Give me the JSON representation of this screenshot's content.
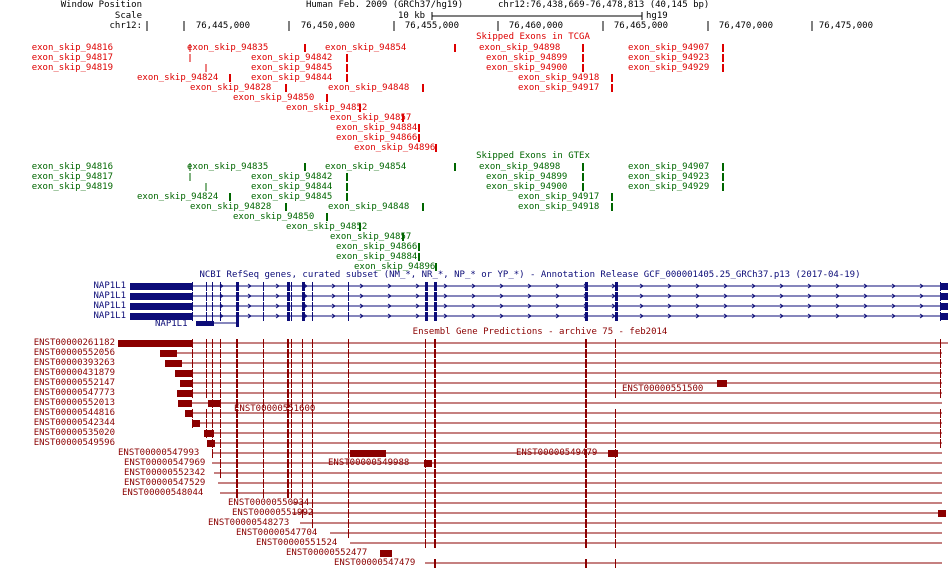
{
  "header": {
    "window_position_label": "Window Position",
    "assembly": "Human Feb. 2009 (GRCh37/hg19)",
    "position": "chr12:76,438,669-76,478,813 (40,145 bp)",
    "scale_label": "Scale",
    "scale_value": "10 kb",
    "scale_assembly": "hg19",
    "chrom_label": "chr12:",
    "ruler_ticks": [
      "76,445,000",
      "76,450,000",
      "76,455,000",
      "76,460,000",
      "76,465,000",
      "76,470,000",
      "76,475,000"
    ]
  },
  "tracks": {
    "tcga": {
      "title": "Skipped Exons in TCGA",
      "color": "#dd0000",
      "left_labels": [
        "exon_skip_94816",
        "exon_skip_94817",
        "exon_skip_94819"
      ],
      "items": [
        {
          "label": "exon_skip_94835",
          "row": 0,
          "align": "right",
          "side": "left"
        },
        {
          "label": "exon_skip_94854",
          "row": 0,
          "align": "right",
          "side": "left"
        },
        {
          "label": "exon_skip_94898",
          "row": 0,
          "align": "right",
          "side": "left"
        },
        {
          "label": "exon_skip_94907",
          "row": 0,
          "align": "right",
          "side": "left"
        },
        {
          "label": "exon_skip_94842",
          "row": 1,
          "align": "right",
          "side": "left"
        },
        {
          "label": "exon_skip_94899",
          "row": 1,
          "align": "right",
          "side": "left"
        },
        {
          "label": "exon_skip_94923",
          "row": 1,
          "align": "right",
          "side": "left"
        },
        {
          "label": "exon_skip_94845",
          "row": 2,
          "align": "right",
          "side": "left"
        },
        {
          "label": "exon_skip_94900",
          "row": 2,
          "align": "right",
          "side": "left"
        },
        {
          "label": "exon_skip_94929",
          "row": 2,
          "align": "right",
          "side": "left"
        },
        {
          "label": "exon_skip_94824",
          "row": 3,
          "align": "right",
          "side": "left"
        },
        {
          "label": "exon_skip_94844",
          "row": 3,
          "align": "right",
          "side": "left"
        },
        {
          "label": "exon_skip_94918",
          "row": 3,
          "align": "right",
          "side": "left"
        },
        {
          "label": "exon_skip_94828",
          "row": 4,
          "align": "right",
          "side": "left"
        },
        {
          "label": "exon_skip_94848",
          "row": 4,
          "align": "right",
          "side": "left"
        },
        {
          "label": "exon_skip_94917",
          "row": 4,
          "align": "right",
          "side": "left"
        },
        {
          "label": "exon_skip_94850",
          "row": 5,
          "align": "right",
          "side": "left"
        },
        {
          "label": "exon_skip_94852",
          "row": 6,
          "align": "right",
          "side": "left"
        },
        {
          "label": "exon_skip_94857",
          "row": 7,
          "align": "right",
          "side": "left"
        },
        {
          "label": "exon_skip_94884",
          "row": 8,
          "align": "right",
          "side": "left"
        },
        {
          "label": "exon_skip_94866",
          "row": 9,
          "align": "right",
          "side": "left"
        },
        {
          "label": "exon_skip_94896",
          "row": 10,
          "align": "right",
          "side": "left"
        }
      ]
    },
    "gtex": {
      "title": "Skipped Exons in GTEx",
      "color": "#006600",
      "left_labels": [
        "exon_skip_94816",
        "exon_skip_94817",
        "exon_skip_94819"
      ],
      "items": [
        {
          "label": "exon_skip_94835",
          "row": 0
        },
        {
          "label": "exon_skip_94854",
          "row": 0
        },
        {
          "label": "exon_skip_94898",
          "row": 0
        },
        {
          "label": "exon_skip_94907",
          "row": 0
        },
        {
          "label": "exon_skip_94842",
          "row": 1
        },
        {
          "label": "exon_skip_94899",
          "row": 1
        },
        {
          "label": "exon_skip_94923",
          "row": 1
        },
        {
          "label": "exon_skip_94844",
          "row": 2
        },
        {
          "label": "exon_skip_94900",
          "row": 2
        },
        {
          "label": "exon_skip_94929",
          "row": 2
        },
        {
          "label": "exon_skip_94824",
          "row": 3
        },
        {
          "label": "exon_skip_94845",
          "row": 3
        },
        {
          "label": "exon_skip_94917",
          "row": 3
        },
        {
          "label": "exon_skip_94828",
          "row": 4
        },
        {
          "label": "exon_skip_94848",
          "row": 4
        },
        {
          "label": "exon_skip_94918",
          "row": 4
        },
        {
          "label": "exon_skip_94850",
          "row": 5
        },
        {
          "label": "exon_skip_94852",
          "row": 6
        },
        {
          "label": "exon_skip_94857",
          "row": 7
        },
        {
          "label": "exon_skip_94866",
          "row": 8
        },
        {
          "label": "exon_skip_94884",
          "row": 9
        },
        {
          "label": "exon_skip_94896",
          "row": 10
        }
      ]
    },
    "refseq": {
      "title": "NCBI RefSeq genes, curated subset (NM_*, NR_*, NP_* or YP_*) - Annotation Release GCF_000001405.25_GRCh37.p13 (2017-04-19)",
      "color": "#0c0c78",
      "left_labels": [
        "NAP1L1",
        "NAP1L1",
        "NAP1L1",
        "NAP1L1"
      ],
      "inline_label": "NAP1L1"
    },
    "ensembl": {
      "title": "Ensembl Gene Predictions - archive 75 - feb2014",
      "color": "#8b0000",
      "left_labels": [
        "ENST00000261182",
        "ENST00000552056",
        "ENST00000393263",
        "ENST00000431879",
        "ENST00000552147",
        "ENST00000547773",
        "ENST00000552013",
        "ENST00000544816",
        "ENST00000542344",
        "ENST00000535020",
        "ENST00000549596"
      ],
      "inline_labels": [
        {
          "label": "ENST00000551500",
          "row": 4
        },
        {
          "label": "ENST00000551600",
          "row": 6
        },
        {
          "label": "ENST00000547993",
          "row": 11
        },
        {
          "label": "ENST00000549479",
          "row": 11
        },
        {
          "label": "ENST00000547969",
          "row": 12
        },
        {
          "label": "ENST00000549988",
          "row": 12
        },
        {
          "label": "ENST00000552342",
          "row": 13
        },
        {
          "label": "ENST00000547529",
          "row": 14
        },
        {
          "label": "ENST00000548044",
          "row": 15
        },
        {
          "label": "ENST00000550934",
          "row": 16
        },
        {
          "label": "ENST00000551992",
          "row": 17
        },
        {
          "label": "ENST00000548273",
          "row": 18
        },
        {
          "label": "ENST00000547704",
          "row": 19
        },
        {
          "label": "ENST00000551524",
          "row": 20
        },
        {
          "label": "ENST00000552477",
          "row": 21
        },
        {
          "label": "ENST00000547479",
          "row": 22
        }
      ]
    }
  }
}
